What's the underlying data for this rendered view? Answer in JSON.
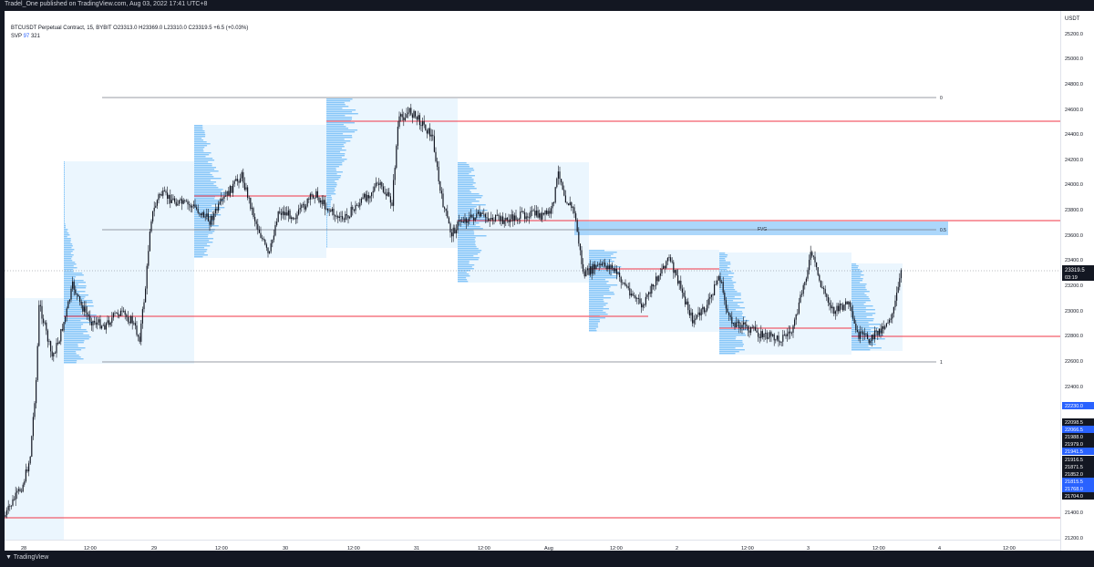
{
  "header": {
    "publisher": "Tradel_One published on TradingView.com, Aug 03, 2022 17:41 UTC+8"
  },
  "legend": {
    "symbol_line": "BTCUSDT Perpetual Contract, 15, BYBIT  O23313.0  H23369.0  L23310.0  C23319.5  +6.5 (+0.03%)",
    "svp_label": "SVP",
    "svp_val1": "97",
    "svp_val2": "321"
  },
  "price_axis": {
    "currency": "USDT",
    "ticks": [
      "25200.0",
      "25000.0",
      "24800.0",
      "24600.0",
      "24400.0",
      "24200.0",
      "24000.0",
      "23800.0",
      "23600.0",
      "23400.0",
      "23200.0",
      "23000.0",
      "22800.0",
      "22600.0",
      "22400.0",
      "21400.0",
      "21200.0"
    ],
    "current_price": "23319.5",
    "countdown": "03:19",
    "badges": [
      "22230.0",
      "22098.5",
      "22066.5",
      "21988.0",
      "21979.0",
      "21941.5",
      "21916.5",
      "21871.5",
      "21852.0",
      "21815.5",
      "21768.0",
      "21704.0"
    ]
  },
  "time_axis": {
    "labels": [
      "28",
      "12:00",
      "29",
      "12:00",
      "30",
      "12:00",
      "31",
      "12:00",
      "Aug",
      "12:00",
      "2",
      "12:00",
      "3",
      "12:00",
      "4",
      "12:00"
    ]
  },
  "annotations": {
    "fib_0": "0",
    "fib_05": "0.5",
    "fib_1": "1",
    "fvg": "FVG"
  },
  "footer": {
    "brand": "TradingView"
  },
  "colors": {
    "background": "#ffffff",
    "candle": "#131722",
    "level_line": "#f23645",
    "fvg_fill": "#90caf9",
    "profile_fill": "#e3f2fd",
    "profile_bars": "#64b5f6",
    "badge_blue": "#2962ff",
    "badge_dark": "#131722"
  }
}
